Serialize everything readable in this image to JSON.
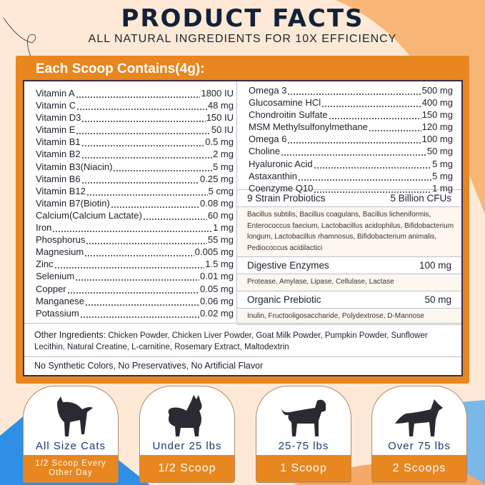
{
  "header": {
    "title": "PRODUCT FACTS",
    "subtitle": "ALL NATURAL INGREDIENTS FOR 10X EFFICIENCY"
  },
  "panel_title": "Each Scoop Contains(4g):",
  "left_items": [
    {
      "name": "Vitamin A",
      "value": "1800 IU"
    },
    {
      "name": "Vitamin C",
      "value": "48 mg"
    },
    {
      "name": "Vitamin D3",
      "value": "150 IU"
    },
    {
      "name": "Vitamin E",
      "value": "50 IU"
    },
    {
      "name": "Vitamin B1",
      "value": "0.5 mg"
    },
    {
      "name": "Vitamin B2",
      "value": "2 mg"
    },
    {
      "name": "Vitamin B3(Niacin)",
      "value": "5 mg"
    },
    {
      "name": "Vitamin B6",
      "value": "0.25 mg"
    },
    {
      "name": "Vitamin B12",
      "value": "5 cmg"
    },
    {
      "name": "Vitamin B7(Biotin)",
      "value": "0.08 mg"
    },
    {
      "name": "Calcium(Calcium Lactate)",
      "value": "60 mg"
    },
    {
      "name": "Iron",
      "value": "1 mg"
    },
    {
      "name": "Phosphorus",
      "value": "55 mg"
    },
    {
      "name": "Magnesium",
      "value": "0.005 mg"
    },
    {
      "name": "Zinc",
      "value": "1.5 mg"
    },
    {
      "name": "Selenium",
      "value": "0.01 mg"
    },
    {
      "name": "Copper",
      "value": "0.05 mg"
    },
    {
      "name": "Manganese",
      "value": "0.06 mg"
    },
    {
      "name": "Potassium",
      "value": "0.02 mg"
    }
  ],
  "right_items": [
    {
      "name": "Omega 3",
      "value": "500 mg"
    },
    {
      "name": "Glucosamine HCl",
      "value": "400 mg"
    },
    {
      "name": "Chondroitin Sulfate",
      "value": "150 mg"
    },
    {
      "name": "MSM Methylsulfonylmethane",
      "value": "120 mg"
    },
    {
      "name": "Omega 6",
      "value": "100 mg"
    },
    {
      "name": "Choline",
      "value": "50 mg"
    },
    {
      "name": "Hyaluronic Acid",
      "value": "5 mg"
    },
    {
      "name": "Astaxanthin",
      "value": "5 mg"
    },
    {
      "name": "Coenzyme Q10",
      "value": "1 mg"
    }
  ],
  "sections": [
    {
      "name": "9 Strain Probiotics",
      "value": "5 Billion CFUs",
      "desc": "Bacillus subtilis, Bacillus coagulans, Bacillus licheniformis, Enterococcus faecium, Lactobacillus acidophilus, Bifidobacterium longum, Lactobacillus rhamnosus, Bifidobacterium animalis, Pediococcus acidilactici"
    },
    {
      "name": "Digestive Enzymes",
      "value": "100 mg",
      "desc": "Protease, Amylase, Lipase, Cellulase, Lactase"
    },
    {
      "name": "Organic Prebiotic",
      "value": "50 mg",
      "desc": "Inulin, Fructooligosaccharide, Polydextrose, D-Mannose"
    }
  ],
  "other": {
    "label": "Other Ingredients:",
    "text": " Chicken Powder, Chicken Liver Powder, Goat Milk Powder, Pumpkin Powder, Sunflower Lecithin, Natural Creatine, L-carnitine, Rosemary Extract, Maltodextrin"
  },
  "footer": "No Synthetic Colors, No Preservatives, No Artificial Flavor",
  "cards": [
    {
      "icon": "cat-icon",
      "label": "All Size Cats",
      "dose": "1/2 Scoop Every Other Day"
    },
    {
      "icon": "small-dog-icon",
      "label": "Under 25 lbs",
      "dose": "1/2 Scoop"
    },
    {
      "icon": "medium-dog-icon",
      "label": "25-75 lbs",
      "dose": "1 Scoop"
    },
    {
      "icon": "large-dog-icon",
      "label": "Over 75 lbs",
      "dose": "2 Scoops"
    }
  ],
  "colors": {
    "orange": "#e8861f",
    "navy": "#132238",
    "blue": "#2f8fe6"
  }
}
